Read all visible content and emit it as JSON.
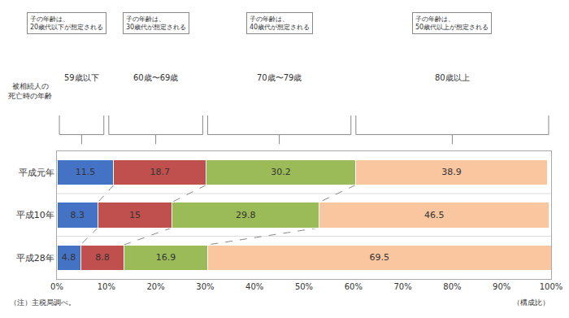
{
  "chart_data": {
    "type": "bar",
    "orientation": "horizontal",
    "stacked": true,
    "data_labels": true,
    "grid": false,
    "title": "被相続人の\n死亡時の年齢",
    "categories": [
      "平成元年",
      "平成10年",
      "平成28年"
    ],
    "series": [
      {
        "color": "#4472c4",
        "values": [
          11.5,
          8.3,
          4.8
        ]
      },
      {
        "color": "#c0504d",
        "values": [
          18.7,
          15.0,
          8.8
        ]
      },
      {
        "color": "#9bbb59",
        "values": [
          30.2,
          29.8,
          16.9
        ]
      },
      {
        "color": "#f9c6a0",
        "values": [
          38.9,
          46.5,
          69.5
        ]
      }
    ],
    "xlim": [
      0,
      100
    ],
    "xticks": [
      {
        "value": 0,
        "label": "0%"
      },
      {
        "value": 10,
        "label": "10%"
      },
      {
        "value": 20,
        "label": "20%"
      },
      {
        "value": 30,
        "label": "30%"
      },
      {
        "value": 40,
        "label": "40%"
      },
      {
        "value": 50,
        "label": "50%"
      },
      {
        "value": 60,
        "label": "60%"
      },
      {
        "value": 70,
        "label": "70%"
      },
      {
        "value": 80,
        "label": "80%"
      },
      {
        "value": 90,
        "label": "90%"
      },
      {
        "value": 100,
        "label": "100%"
      }
    ],
    "xlabel": "（構成比）",
    "note": "（注）主税局調べ。",
    "brackets": [
      {
        "from": 0,
        "to": 10,
        "label": "59歳以下",
        "annotation": "子の年齢は、\n20歳代以下が想定される"
      },
      {
        "from": 10,
        "to": 30,
        "label": "60歳〜69歳",
        "annotation": "子の年齢は、\n30歳代が想定される"
      },
      {
        "from": 30,
        "to": 60,
        "label": "70歳〜79歳",
        "annotation": "子の年齢は、\n40歳代が想定される"
      },
      {
        "from": 60,
        "to": 100,
        "label": "80歳以上",
        "annotation": "子の年齢は、\n50歳代以上が想定される"
      }
    ]
  }
}
